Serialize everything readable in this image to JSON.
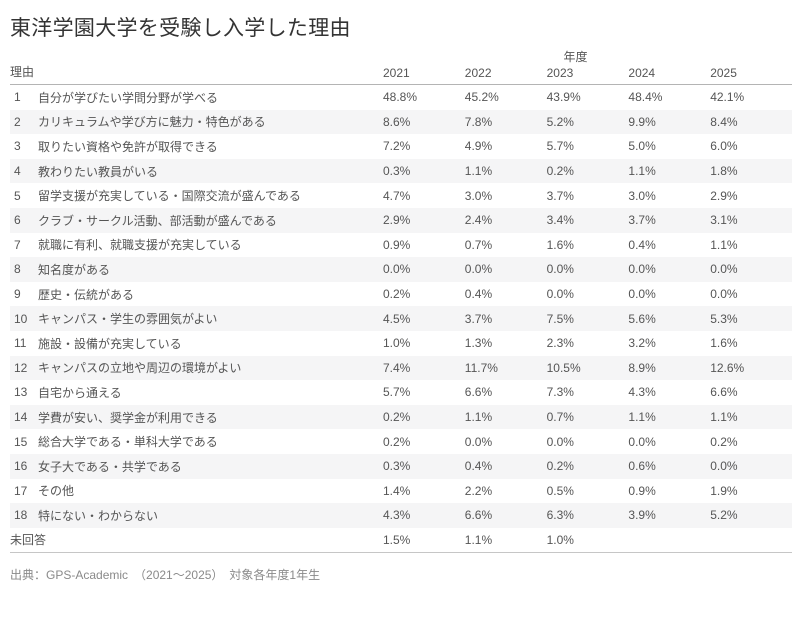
{
  "title": "東洋学園大学を受験し入学した理由",
  "source_note": "出典：GPS-Academic　（2021〜2025）　対象各年度1年生",
  "colors": {
    "title_text": "#333333",
    "body_text": "#555555",
    "stripe": "#f5f5f6",
    "header_rule": "#b4b4b4",
    "bottom_rule": "#c6c6c6",
    "footer_text": "#8a8a8a"
  },
  "chart_data": {
    "type": "table",
    "title": "東洋学園大学を受験し入学した理由",
    "column_group_label": "年度",
    "row_header": "理由",
    "columns": [
      "2021",
      "2022",
      "2023",
      "2024",
      "2025"
    ],
    "rows": [
      {
        "no": "1",
        "reason": "自分が学びたい学問分野が学べる",
        "values": [
          "48.8%",
          "45.2%",
          "43.9%",
          "48.4%",
          "42.1%"
        ]
      },
      {
        "no": "2",
        "reason": "カリキュラムや学び方に魅力・特色がある",
        "values": [
          "8.6%",
          "7.8%",
          "5.2%",
          "9.9%",
          "8.4%"
        ]
      },
      {
        "no": "3",
        "reason": "取りたい資格や免許が取得できる",
        "values": [
          "7.2%",
          "4.9%",
          "5.7%",
          "5.0%",
          "6.0%"
        ]
      },
      {
        "no": "4",
        "reason": "教わりたい教員がいる",
        "values": [
          "0.3%",
          "1.1%",
          "0.2%",
          "1.1%",
          "1.8%"
        ]
      },
      {
        "no": "5",
        "reason": "留学支援が充実している・国際交流が盛んである",
        "values": [
          "4.7%",
          "3.0%",
          "3.7%",
          "3.0%",
          "2.9%"
        ]
      },
      {
        "no": "6",
        "reason": "クラブ・サークル活動、部活動が盛んである",
        "values": [
          "2.9%",
          "2.4%",
          "3.4%",
          "3.7%",
          "3.1%"
        ]
      },
      {
        "no": "7",
        "reason": "就職に有利、就職支援が充実している",
        "values": [
          "0.9%",
          "0.7%",
          "1.6%",
          "0.4%",
          "1.1%"
        ]
      },
      {
        "no": "8",
        "reason": "知名度がある",
        "values": [
          "0.0%",
          "0.0%",
          "0.0%",
          "0.0%",
          "0.0%"
        ]
      },
      {
        "no": "9",
        "reason": "歴史・伝統がある",
        "values": [
          "0.2%",
          "0.4%",
          "0.0%",
          "0.0%",
          "0.0%"
        ]
      },
      {
        "no": "10",
        "reason": "キャンパス・学生の雰囲気がよい",
        "values": [
          "4.5%",
          "3.7%",
          "7.5%",
          "5.6%",
          "5.3%"
        ]
      },
      {
        "no": "11",
        "reason": "施設・設備が充実している",
        "values": [
          "1.0%",
          "1.3%",
          "2.3%",
          "3.2%",
          "1.6%"
        ]
      },
      {
        "no": "12",
        "reason": "キャンパスの立地や周辺の環境がよい",
        "values": [
          "7.4%",
          "11.7%",
          "10.5%",
          "8.9%",
          "12.6%"
        ]
      },
      {
        "no": "13",
        "reason": "自宅から通える",
        "values": [
          "5.7%",
          "6.6%",
          "7.3%",
          "4.3%",
          "6.6%"
        ]
      },
      {
        "no": "14",
        "reason": "学費が安い、奨学金が利用できる",
        "values": [
          "0.2%",
          "1.1%",
          "0.7%",
          "1.1%",
          "1.1%"
        ]
      },
      {
        "no": "15",
        "reason": "総合大学である・単科大学である",
        "values": [
          "0.2%",
          "0.0%",
          "0.0%",
          "0.0%",
          "0.2%"
        ]
      },
      {
        "no": "16",
        "reason": "女子大である・共学である",
        "values": [
          "0.3%",
          "0.4%",
          "0.2%",
          "0.6%",
          "0.0%"
        ]
      },
      {
        "no": "17",
        "reason": "その他",
        "values": [
          "1.4%",
          "2.2%",
          "0.5%",
          "0.9%",
          "1.9%"
        ]
      },
      {
        "no": "18",
        "reason": "特にない・わからない",
        "values": [
          "4.3%",
          "6.6%",
          "6.3%",
          "3.9%",
          "5.2%"
        ]
      },
      {
        "no": "",
        "reason": "未回答",
        "values": [
          "1.5%",
          "1.1%",
          "1.0%",
          "",
          ""
        ]
      }
    ]
  }
}
